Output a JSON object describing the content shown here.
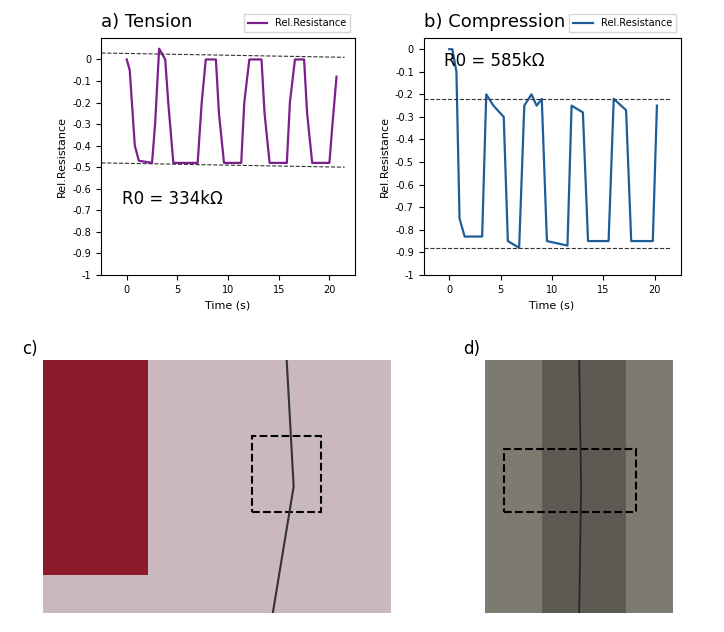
{
  "chart_data": [
    {
      "type": "line",
      "title": "a) Tension",
      "x_label": "Time (s)",
      "y_label": "Rel.Resistance",
      "annotation": "R0 = 334kΩ",
      "legend": "upper right",
      "grid": false,
      "xlim": [
        -2.5,
        22.5
      ],
      "ylim": [
        -1,
        0.1
      ],
      "xticks": [
        0,
        5,
        10,
        15,
        20
      ],
      "yticks": [
        0,
        -0.1,
        -0.2,
        -0.3,
        -0.4,
        -0.5,
        -0.6,
        -0.7,
        -0.8,
        -0.9,
        -1
      ],
      "reference_lines": [
        {
          "x": [
            -2.5,
            21.5
          ],
          "y": [
            0.03,
            0.01
          ]
        },
        {
          "x": [
            -2.5,
            21.5
          ],
          "y": [
            -0.48,
            -0.5
          ]
        }
      ],
      "series": [
        {
          "name": "Rel.Resistance",
          "color": "#7b1f8c",
          "line_style": "solid",
          "x": [
            0,
            0.3,
            0.8,
            1.2,
            2.5,
            2.8,
            3.2,
            3.8,
            4.1,
            4.6,
            7.0,
            7.4,
            7.8,
            8.8,
            9.1,
            9.6,
            11.3,
            11.6,
            12.1,
            13.3,
            13.6,
            14.1,
            15.8,
            16.1,
            16.6,
            17.5,
            17.8,
            18.3,
            20.0,
            20.3,
            20.7
          ],
          "values": [
            0.0,
            -0.05,
            -0.4,
            -0.47,
            -0.48,
            -0.3,
            0.05,
            0.0,
            -0.2,
            -0.48,
            -0.48,
            -0.2,
            0.0,
            0.0,
            -0.25,
            -0.48,
            -0.48,
            -0.2,
            0.0,
            0.0,
            -0.25,
            -0.48,
            -0.48,
            -0.2,
            0.0,
            0.0,
            -0.25,
            -0.48,
            -0.48,
            -0.3,
            -0.08
          ]
        }
      ]
    },
    {
      "type": "line",
      "title": "b) Compression",
      "x_label": "Time (s)",
      "y_label": "Rel.Resistance",
      "annotation": "R0 = 585kΩ",
      "legend": "upper right",
      "grid": false,
      "xlim": [
        -2.5,
        22.5
      ],
      "ylim": [
        -1,
        0.05
      ],
      "xticks": [
        0,
        5,
        10,
        15,
        20
      ],
      "yticks": [
        0,
        -0.1,
        -0.2,
        -0.3,
        -0.4,
        -0.5,
        -0.6,
        -0.7,
        -0.8,
        -0.9,
        -1
      ],
      "reference_lines": [
        {
          "x": [
            -2.5,
            21.5
          ],
          "y": [
            -0.22,
            -0.22
          ]
        },
        {
          "x": [
            -2.5,
            21.5
          ],
          "y": [
            -0.88,
            -0.88
          ]
        }
      ],
      "series": [
        {
          "name": "Rel.Resistance",
          "color": "#1f5d99",
          "line_style": "solid",
          "x": [
            0,
            0.3,
            0.7,
            1.0,
            1.5,
            3.2,
            3.6,
            4.3,
            5.3,
            5.7,
            6.8,
            7.3,
            8.0,
            8.5,
            9.0,
            9.5,
            11.5,
            11.9,
            13.0,
            13.5,
            15.5,
            16.0,
            17.2,
            17.7,
            19.8,
            20.2
          ],
          "values": [
            0.0,
            0.0,
            -0.1,
            -0.75,
            -0.83,
            -0.83,
            -0.2,
            -0.25,
            -0.3,
            -0.85,
            -0.88,
            -0.25,
            -0.2,
            -0.25,
            -0.22,
            -0.85,
            -0.87,
            -0.25,
            -0.28,
            -0.85,
            -0.85,
            -0.22,
            -0.27,
            -0.85,
            -0.85,
            -0.25
          ]
        }
      ]
    }
  ],
  "images": [
    {
      "label": "c)"
    },
    {
      "label": "d)"
    }
  ]
}
